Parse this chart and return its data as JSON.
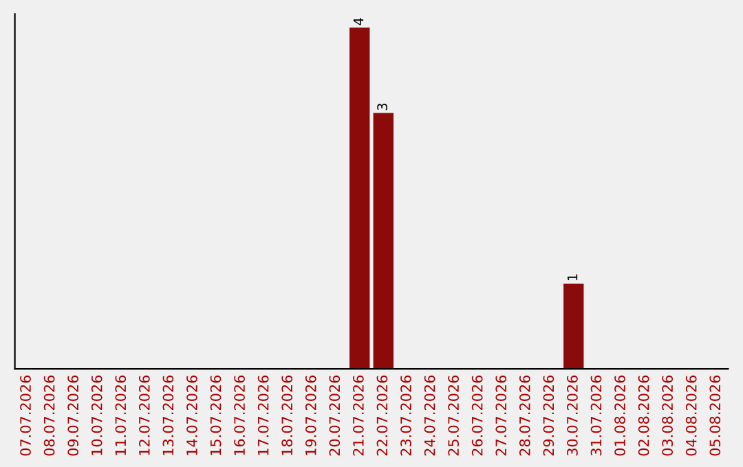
{
  "chart_data": {
    "type": "bar",
    "categories": [
      "07.07.2026",
      "08.07.2026",
      "09.07.2026",
      "10.07.2026",
      "11.07.2026",
      "12.07.2026",
      "13.07.2026",
      "14.07.2026",
      "15.07.2026",
      "16.07.2026",
      "17.07.2026",
      "18.07.2026",
      "19.07.2026",
      "20.07.2026",
      "21.07.2026",
      "22.07.2026",
      "23.07.2026",
      "24.07.2026",
      "25.07.2026",
      "26.07.2026",
      "27.07.2026",
      "28.07.2026",
      "29.07.2026",
      "30.07.2026",
      "31.07.2026",
      "01.08.2026",
      "02.08.2026",
      "03.08.2026",
      "04.08.2026",
      "05.08.2026"
    ],
    "values": [
      null,
      null,
      null,
      null,
      null,
      null,
      null,
      null,
      null,
      null,
      null,
      null,
      null,
      null,
      4,
      3,
      null,
      null,
      null,
      null,
      null,
      null,
      null,
      1,
      null,
      null,
      null,
      null,
      null,
      null
    ],
    "value_labels": [
      null,
      null,
      null,
      null,
      null,
      null,
      null,
      null,
      null,
      null,
      null,
      null,
      null,
      null,
      "4",
      "3",
      null,
      null,
      null,
      null,
      null,
      null,
      null,
      "1",
      null,
      null,
      null,
      null,
      null,
      null
    ],
    "color": "#8b0a0a",
    "tick_labels": "x",
    "grid": false,
    "legend": false
  }
}
